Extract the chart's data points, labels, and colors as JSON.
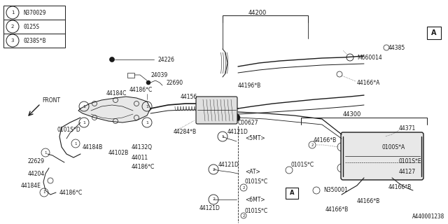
{
  "bg_color": "#f5f5f0",
  "line_color": "#1a1a1a",
  "diagram_number": "A440001238",
  "legend": [
    {
      "num": "1",
      "code": "N370029"
    },
    {
      "num": "2",
      "code": "0125S"
    },
    {
      "num": "3",
      "code": "0238S*B"
    }
  ]
}
